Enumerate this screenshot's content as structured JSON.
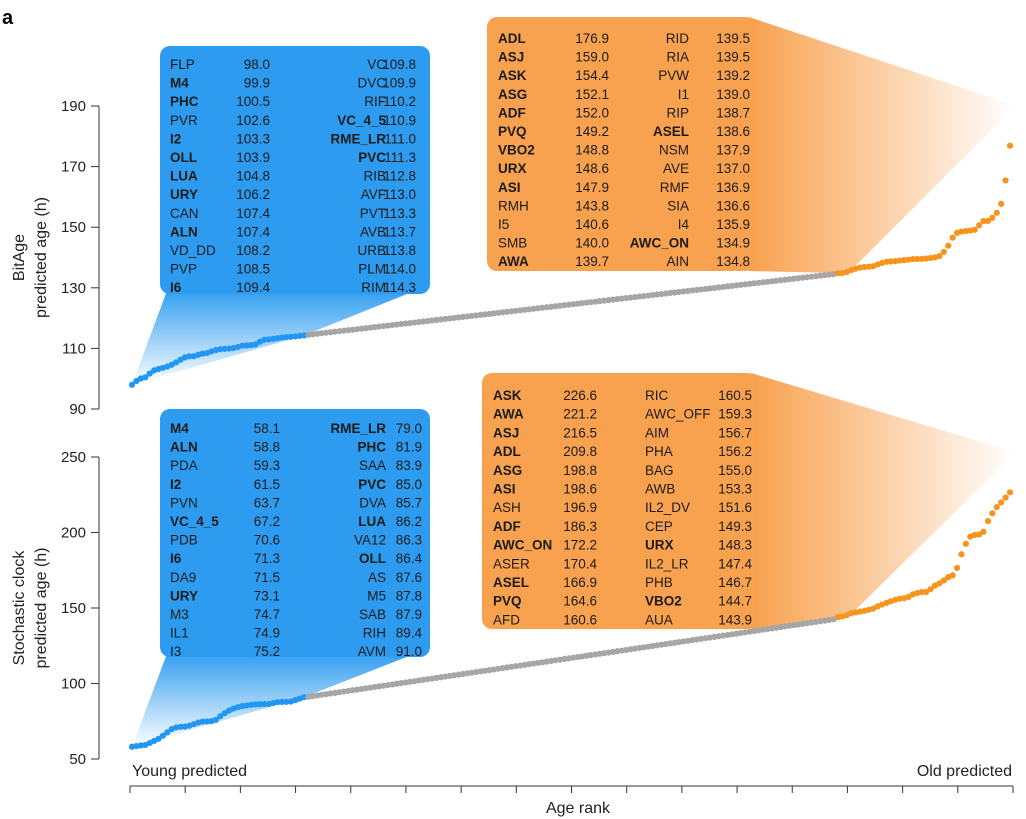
{
  "panel_label": "a",
  "x_axis": {
    "label": "Age rank",
    "left_label": "Young predicted",
    "right_label": "Old predicted"
  },
  "colors": {
    "young": "#2196f3",
    "old": "#f7941d",
    "middle": "#a6a6a6",
    "young_box": "#2d9cf0",
    "old_box": "#f8a14e"
  },
  "chart_data": [
    {
      "type": "scatter",
      "name": "BitAge",
      "ylabel": [
        "BitAge",
        "predicted age (h)"
      ],
      "ylim": [
        90,
        190
      ],
      "yticks": [
        90,
        110,
        130,
        150,
        170,
        190
      ],
      "n_points": 200,
      "young_count": 40,
      "old_count": 40,
      "young": [
        [
          "FLP",
          "98.0",
          false
        ],
        [
          "M4",
          "99.9",
          true
        ],
        [
          "PHC",
          "100.5",
          true
        ],
        [
          "PVR",
          "102.6",
          false
        ],
        [
          "I2",
          "103.3",
          true
        ],
        [
          "OLL",
          "103.9",
          true
        ],
        [
          "LUA",
          "104.8",
          true
        ],
        [
          "URY",
          "106.2",
          true
        ],
        [
          "CAN",
          "107.4",
          false
        ],
        [
          "ALN",
          "107.4",
          true
        ],
        [
          "VD_DD",
          "108.2",
          false
        ],
        [
          "PVP",
          "108.5",
          false
        ],
        [
          "I6",
          "109.4",
          true
        ],
        [
          "VC",
          "109.8",
          false
        ],
        [
          "DVC",
          "109.9",
          false
        ],
        [
          "RIF",
          "110.2",
          false
        ],
        [
          "VC_4_5",
          "110.9",
          true
        ],
        [
          "RME_LR",
          "111.0",
          true
        ],
        [
          "PVC",
          "111.3",
          true
        ],
        [
          "RIB",
          "112.8",
          false
        ],
        [
          "AVF",
          "113.0",
          false
        ],
        [
          "PVT",
          "113.3",
          false
        ],
        [
          "AVB",
          "113.7",
          false
        ],
        [
          "URB",
          "113.8",
          false
        ],
        [
          "PLM",
          "114.0",
          false
        ],
        [
          "RIM",
          "114.3",
          false
        ]
      ],
      "old": [
        [
          "ADL",
          "176.9",
          true
        ],
        [
          "ASJ",
          "159.0",
          true
        ],
        [
          "ASK",
          "154.4",
          true
        ],
        [
          "ASG",
          "152.1",
          true
        ],
        [
          "ADF",
          "152.0",
          true
        ],
        [
          "PVQ",
          "149.2",
          true
        ],
        [
          "VBO2",
          "148.8",
          true
        ],
        [
          "URX",
          "148.6",
          true
        ],
        [
          "ASI",
          "147.9",
          true
        ],
        [
          "RMH",
          "143.8",
          false
        ],
        [
          "I5",
          "140.6",
          false
        ],
        [
          "SMB",
          "140.0",
          false
        ],
        [
          "AWA",
          "139.7",
          true
        ],
        [
          "RID",
          "139.5",
          false
        ],
        [
          "RIA",
          "139.5",
          false
        ],
        [
          "PVW",
          "139.2",
          false
        ],
        [
          "I1",
          "139.0",
          false
        ],
        [
          "RIP",
          "138.7",
          false
        ],
        [
          "ASEL",
          "138.6",
          true
        ],
        [
          "NSM",
          "137.9",
          false
        ],
        [
          "AVE",
          "137.0",
          false
        ],
        [
          "RMF",
          "136.9",
          false
        ],
        [
          "SIA",
          "136.6",
          false
        ],
        [
          "I4",
          "135.9",
          false
        ],
        [
          "AWC_ON",
          "134.9",
          true
        ],
        [
          "AIN",
          "134.8",
          false
        ]
      ],
      "middle_range": [
        114.5,
        134.5
      ]
    },
    {
      "type": "scatter",
      "name": "Stochastic clock",
      "ylabel": [
        "Stochastic clock",
        "predicted age (h)"
      ],
      "ylim": [
        50,
        250
      ],
      "yticks": [
        50,
        100,
        150,
        200,
        250
      ],
      "n_points": 200,
      "young_count": 40,
      "old_count": 40,
      "young": [
        [
          "M4",
          "58.1",
          true
        ],
        [
          "ALN",
          "58.8",
          true
        ],
        [
          "PDA",
          "59.3",
          false
        ],
        [
          "I2",
          "61.5",
          true
        ],
        [
          "PVN",
          "63.7",
          false
        ],
        [
          "VC_4_5",
          "67.2",
          true
        ],
        [
          "PDB",
          "70.6",
          false
        ],
        [
          "I6",
          "71.3",
          true
        ],
        [
          "DA9",
          "71.5",
          false
        ],
        [
          "URY",
          "73.1",
          true
        ],
        [
          "M3",
          "74.7",
          false
        ],
        [
          "IL1",
          "74.9",
          false
        ],
        [
          "I3",
          "75.2",
          false
        ],
        [
          "RME_LR",
          "79.0",
          true
        ],
        [
          "PHC",
          "81.9",
          true
        ],
        [
          "SAA",
          "83.9",
          false
        ],
        [
          "PVC",
          "85.0",
          true
        ],
        [
          "DVA",
          "85.7",
          false
        ],
        [
          "LUA",
          "86.2",
          true
        ],
        [
          "VA12",
          "86.3",
          false
        ],
        [
          "OLL",
          "86.4",
          true
        ],
        [
          "AS",
          "87.6",
          false
        ],
        [
          "M5",
          "87.8",
          false
        ],
        [
          "SAB",
          "87.9",
          false
        ],
        [
          "RIH",
          "89.4",
          false
        ],
        [
          "AVM",
          "91.0",
          false
        ]
      ],
      "old": [
        [
          "ASK",
          "226.6",
          true
        ],
        [
          "AWA",
          "221.2",
          true
        ],
        [
          "ASJ",
          "216.5",
          true
        ],
        [
          "ADL",
          "209.8",
          true
        ],
        [
          "ASG",
          "198.8",
          true
        ],
        [
          "ASI",
          "198.6",
          true
        ],
        [
          "ASH",
          "196.9",
          false
        ],
        [
          "ADF",
          "186.3",
          true
        ],
        [
          "AWC_ON",
          "172.2",
          true
        ],
        [
          "ASER",
          "170.4",
          false
        ],
        [
          "ASEL",
          "166.9",
          true
        ],
        [
          "PVQ",
          "164.6",
          true
        ],
        [
          "AFD",
          "160.6",
          false
        ],
        [
          "RIC",
          "160.5",
          false
        ],
        [
          "AWC_OFF",
          "159.3",
          false
        ],
        [
          "AIM",
          "156.7",
          false
        ],
        [
          "PHA",
          "156.2",
          false
        ],
        [
          "BAG",
          "155.0",
          false
        ],
        [
          "AWB",
          "153.3",
          false
        ],
        [
          "IL2_DV",
          "151.6",
          false
        ],
        [
          "CEP",
          "149.3",
          false
        ],
        [
          "URX",
          "148.3",
          true
        ],
        [
          "IL2_LR",
          "147.4",
          false
        ],
        [
          "PHB",
          "146.7",
          false
        ],
        [
          "VBO2",
          "144.7",
          true
        ],
        [
          "AUA",
          "143.9",
          false
        ]
      ],
      "middle_range": [
        91.2,
        142.5
      ]
    }
  ]
}
